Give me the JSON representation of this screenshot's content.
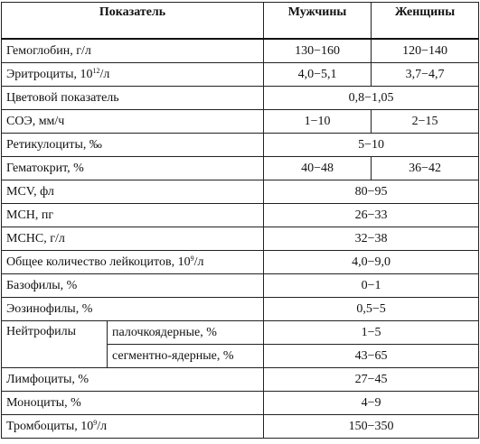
{
  "header": {
    "indicator": "Показатель",
    "men": "Мужчины",
    "women": "Женщины"
  },
  "rows": [
    {
      "label": "Гемоглобин, г/л",
      "men": "130−160",
      "women": "120−140"
    },
    {
      "label": "Эритроциты, 10",
      "sup": "12",
      "label_suffix": "/л",
      "men": "4,0−5,1",
      "women": "3,7−4,7"
    },
    {
      "label": "Цветовой показатель",
      "both": "0,8−1,05"
    },
    {
      "label": "СОЭ, мм/ч",
      "men": "1−10",
      "women": "2−15"
    },
    {
      "label": "Ретикулоциты, ‰",
      "both": "5−10"
    },
    {
      "label": "Гематокрит, %",
      "men": "40−48",
      "women": "36−42"
    },
    {
      "label": "MCV, фл",
      "both": "80−95"
    },
    {
      "label": "МСН, пг",
      "both": "26−33"
    },
    {
      "label": "МСНС, г/л",
      "both": "32−38"
    },
    {
      "label": "Общее количество лейкоцитов, 10",
      "sup": "9",
      "label_suffix": "/л",
      "both": "4,0−9,0"
    },
    {
      "label": "Базофилы, %",
      "both": "0−1"
    },
    {
      "label": "Эозинофилы, %",
      "both": "0,5−5"
    },
    {
      "group": "Нейтрофилы",
      "sublabel": "палочкоядерные, %",
      "both": "1−5"
    },
    {
      "sublabel": "сегментно-ядерные, %",
      "both": "43−65"
    },
    {
      "label": "Лимфоциты, %",
      "both": "27−45"
    },
    {
      "label": "Моноциты, %",
      "both": "4−9"
    },
    {
      "label": "Тромбоциты, 10",
      "sup": "9",
      "label_suffix": "/л",
      "both": "150−350"
    }
  ]
}
